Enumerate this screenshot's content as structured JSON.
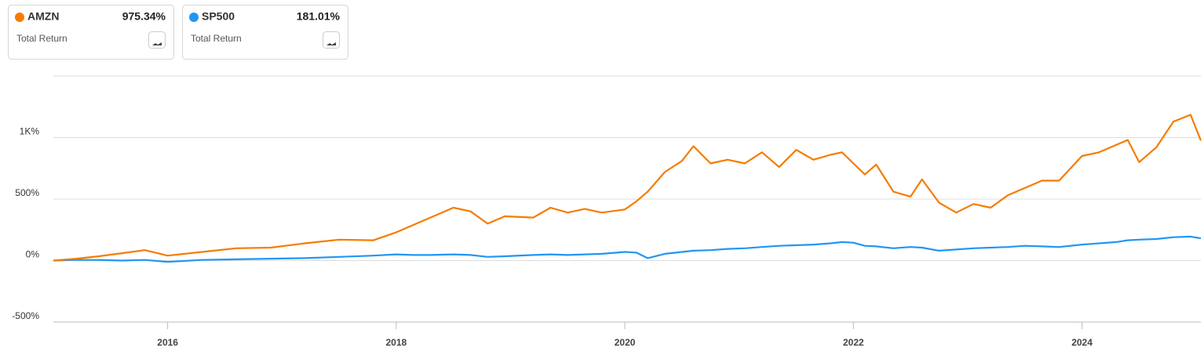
{
  "chart_data": {
    "type": "line",
    "x": [
      2015.0,
      2015.2,
      2015.4,
      2015.6,
      2015.8,
      2016.0,
      2016.3,
      2016.6,
      2016.9,
      2017.2,
      2017.5,
      2017.8,
      2018.0,
      2018.15,
      2018.3,
      2018.5,
      2018.65,
      2018.8,
      2018.95,
      2019.2,
      2019.35,
      2019.5,
      2019.65,
      2019.8,
      2020.0,
      2020.1,
      2020.2,
      2020.35,
      2020.5,
      2020.6,
      2020.75,
      2020.9,
      2021.05,
      2021.2,
      2021.35,
      2021.5,
      2021.65,
      2021.8,
      2021.9,
      2022.0,
      2022.1,
      2022.2,
      2022.35,
      2022.5,
      2022.6,
      2022.75,
      2022.9,
      2023.05,
      2023.2,
      2023.35,
      2023.5,
      2023.65,
      2023.8,
      2024.0,
      2024.15,
      2024.3,
      2024.4,
      2024.5,
      2024.65,
      2024.8,
      2024.95,
      2025.04
    ],
    "series": [
      {
        "name": "AMZN",
        "color": "#f57c00",
        "total_return": "975.34%",
        "metric": "Total Return",
        "values": [
          0,
          15,
          35,
          60,
          85,
          40,
          70,
          100,
          105,
          140,
          170,
          165,
          230,
          290,
          350,
          430,
          400,
          300,
          360,
          350,
          430,
          390,
          420,
          390,
          415,
          480,
          560,
          720,
          810,
          930,
          790,
          820,
          790,
          880,
          760,
          900,
          820,
          860,
          880,
          790,
          700,
          780,
          560,
          520,
          660,
          470,
          390,
          460,
          430,
          530,
          590,
          650,
          650,
          850,
          880,
          940,
          980,
          800,
          920,
          1130,
          1185,
          975.34
        ]
      },
      {
        "name": "SP500",
        "color": "#2196f3",
        "total_return": "181.01%",
        "metric": "Total Return",
        "values": [
          0,
          5,
          5,
          0,
          5,
          -10,
          5,
          10,
          15,
          20,
          30,
          40,
          50,
          45,
          45,
          50,
          45,
          30,
          35,
          45,
          50,
          45,
          50,
          55,
          70,
          65,
          20,
          55,
          70,
          80,
          85,
          95,
          100,
          110,
          120,
          125,
          130,
          140,
          150,
          145,
          120,
          115,
          100,
          110,
          105,
          80,
          90,
          100,
          105,
          110,
          120,
          115,
          110,
          130,
          140,
          150,
          165,
          170,
          175,
          190,
          195,
          181.01
        ]
      }
    ],
    "xlim": [
      2015.0,
      2025.04
    ],
    "xticks": [
      2016,
      2018,
      2020,
      2022,
      2024
    ],
    "ylim": [
      -500,
      1500
    ],
    "yticks": [
      {
        "value": -500,
        "label": "-500%"
      },
      {
        "value": 0,
        "label": "0%"
      },
      {
        "value": 500,
        "label": "500%"
      },
      {
        "value": 1000,
        "label": "1K%"
      }
    ],
    "grid": true
  }
}
